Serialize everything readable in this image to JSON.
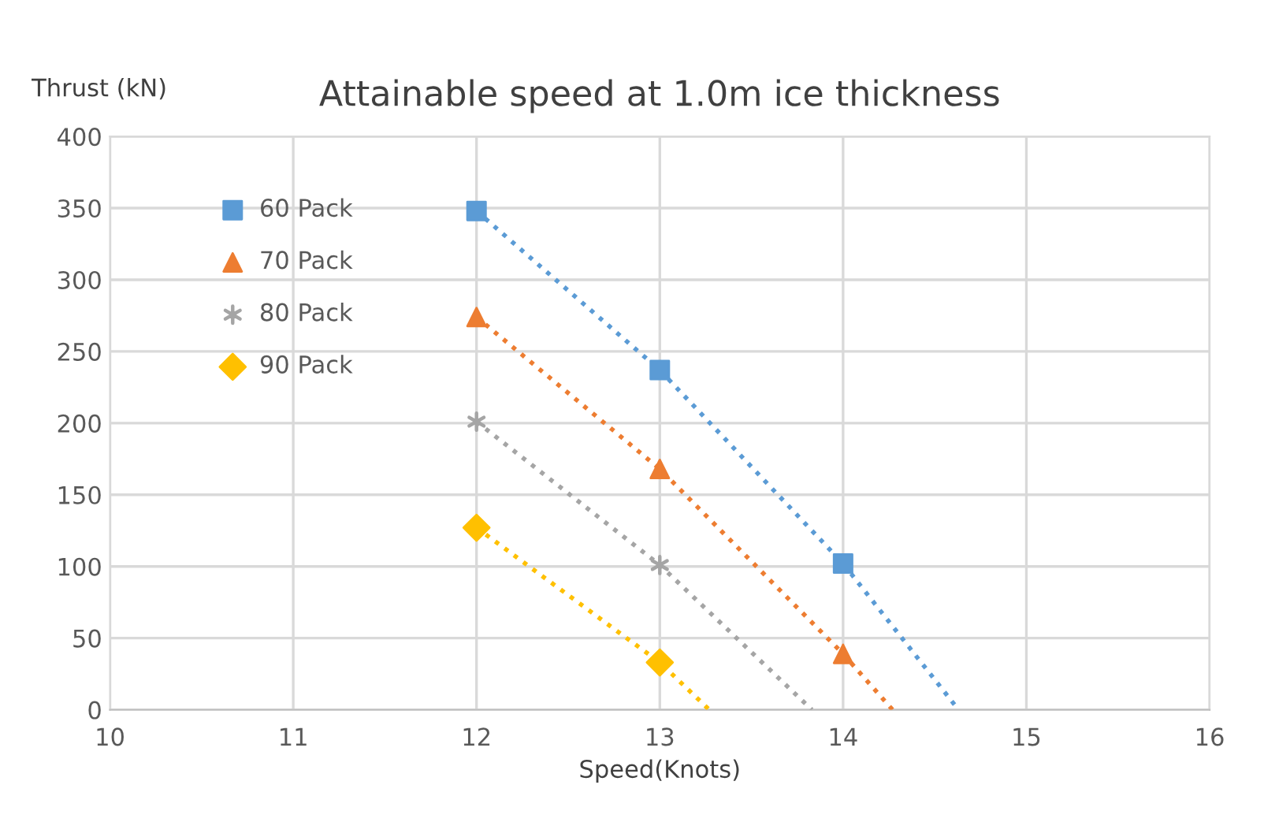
{
  "chart_data": {
    "type": "scatter",
    "title": "Attainable speed at 1.0m ice thickness",
    "xlabel": "Speed(Knots)",
    "ylabel": "Thrust (kN)",
    "xlim": [
      10,
      16
    ],
    "xticks": [
      10,
      11,
      12,
      13,
      14,
      15,
      16
    ],
    "ylim": [
      0,
      400
    ],
    "yticks": [
      0,
      50,
      100,
      150,
      200,
      250,
      300,
      350,
      400
    ],
    "grid": true,
    "legend": "top left",
    "series": [
      {
        "name": "60 Pack",
        "marker": "square",
        "color": "#5b9bd5",
        "x": [
          12,
          13,
          14
        ],
        "values": [
          348,
          237,
          102
        ]
      },
      {
        "name": "70 Pack",
        "marker": "triangle",
        "color": "#ed7d31",
        "x": [
          12,
          13,
          14
        ],
        "values": [
          274,
          168,
          39
        ]
      },
      {
        "name": "80 Pack",
        "marker": "cross",
        "color": "#a5a5a5",
        "x": [
          12,
          13
        ],
        "values": [
          201,
          101
        ]
      },
      {
        "name": "90 Pack",
        "marker": "diamond",
        "color": "#ffc000",
        "x": [
          12,
          13
        ],
        "values": [
          127,
          33
        ]
      },
      {
        "type": "line",
        "line_style": "dotted",
        "color": "#5b9bd5",
        "x": [
          12,
          13,
          14,
          14.63
        ],
        "values": [
          348,
          237,
          102,
          0
        ]
      },
      {
        "type": "line",
        "line_style": "dotted",
        "color": "#ed7d31",
        "x": [
          12,
          13,
          14,
          14.27
        ],
        "values": [
          274,
          168,
          39,
          0
        ]
      },
      {
        "type": "line",
        "line_style": "dotted",
        "color": "#a5a5a5",
        "x": [
          12,
          13,
          13.83
        ],
        "values": [
          201,
          101,
          0
        ]
      },
      {
        "type": "line",
        "line_style": "dotted",
        "color": "#ffc000",
        "x": [
          12,
          13,
          13.27
        ],
        "values": [
          127,
          33,
          0
        ]
      }
    ]
  }
}
